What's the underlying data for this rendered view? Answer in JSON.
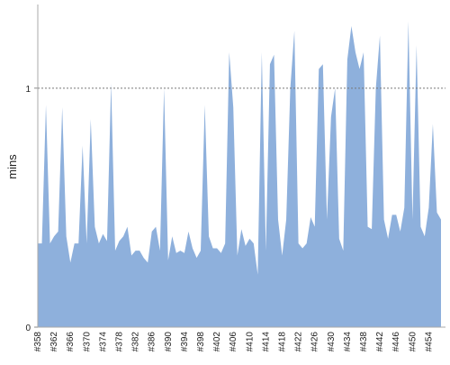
{
  "chart_data": {
    "type": "area",
    "y_label": "mins",
    "color": "#8eb0dc",
    "ylim": [
      0,
      1.35
    ],
    "yticks": [
      0,
      1
    ],
    "grid_at": [
      1
    ],
    "categories": [
      "#358",
      null,
      null,
      null,
      "#362",
      null,
      null,
      null,
      "#366",
      null,
      null,
      null,
      "#370",
      null,
      null,
      null,
      "#374",
      null,
      null,
      null,
      "#378",
      null,
      null,
      null,
      "#382",
      null,
      null,
      null,
      "#386",
      null,
      null,
      null,
      "#390",
      null,
      null,
      null,
      "#394",
      null,
      null,
      null,
      "#398",
      null,
      null,
      null,
      "#402",
      null,
      null,
      null,
      "#406",
      null,
      null,
      null,
      "#410",
      null,
      null,
      null,
      "#414",
      null,
      null,
      null,
      "#418",
      null,
      null,
      null,
      "#422",
      null,
      null,
      null,
      "#426",
      null,
      null,
      null,
      "#430",
      null,
      null,
      null,
      "#434",
      null,
      null,
      null,
      "#438",
      null,
      null,
      null,
      "#442",
      null,
      null,
      null,
      "#446",
      null,
      null,
      null,
      "#450",
      null,
      null,
      null,
      "#454",
      null,
      null,
      null
    ],
    "values": [
      0.35,
      0.35,
      0.93,
      0.35,
      0.38,
      0.4,
      0.92,
      0.38,
      0.27,
      0.35,
      0.35,
      0.76,
      0.35,
      0.87,
      0.42,
      0.35,
      0.39,
      0.36,
      1.02,
      0.32,
      0.36,
      0.38,
      0.42,
      0.3,
      0.32,
      0.32,
      0.29,
      0.27,
      0.4,
      0.42,
      0.32,
      1.0,
      0.28,
      0.38,
      0.31,
      0.32,
      0.31,
      0.4,
      0.33,
      0.29,
      0.32,
      0.93,
      0.38,
      0.33,
      0.33,
      0.31,
      0.35,
      1.15,
      0.92,
      0.3,
      0.41,
      0.34,
      0.37,
      0.35,
      0.22,
      1.15,
      0.32,
      1.1,
      1.14,
      0.45,
      0.3,
      0.45,
      1.0,
      1.24,
      0.35,
      0.33,
      0.35,
      0.46,
      0.42,
      1.08,
      1.1,
      0.45,
      0.88,
      1.0,
      0.37,
      0.32,
      1.12,
      1.26,
      1.15,
      1.08,
      1.15,
      0.42,
      0.41,
      1.0,
      1.22,
      0.45,
      0.37,
      0.47,
      0.47,
      0.4,
      0.5,
      1.28,
      0.45,
      1.18,
      0.42,
      0.38,
      0.5,
      0.85,
      0.48,
      0.45
    ]
  }
}
